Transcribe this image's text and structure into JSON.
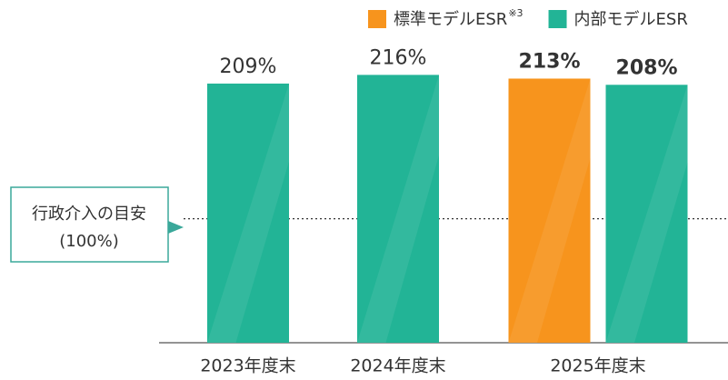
{
  "chart_data": {
    "type": "bar",
    "categories": [
      "2023年度末",
      "2024年度末",
      "2025年度末"
    ],
    "series": [
      {
        "name": "標準モデルESR",
        "name_note": "※3",
        "color": "#f7941d",
        "values": [
          null,
          null,
          213
        ],
        "value_labels": [
          null,
          null,
          "213%"
        ]
      },
      {
        "name": "内部モデルESR",
        "color": "#22b496",
        "values": [
          209,
          216,
          208
        ],
        "value_labels": [
          "209%",
          "216%",
          "208%"
        ]
      }
    ],
    "ylim": [
      0,
      250
    ],
    "reference_line": {
      "value": 100,
      "label": "行政介入の目安",
      "sublabel": "(100%)"
    }
  }
}
